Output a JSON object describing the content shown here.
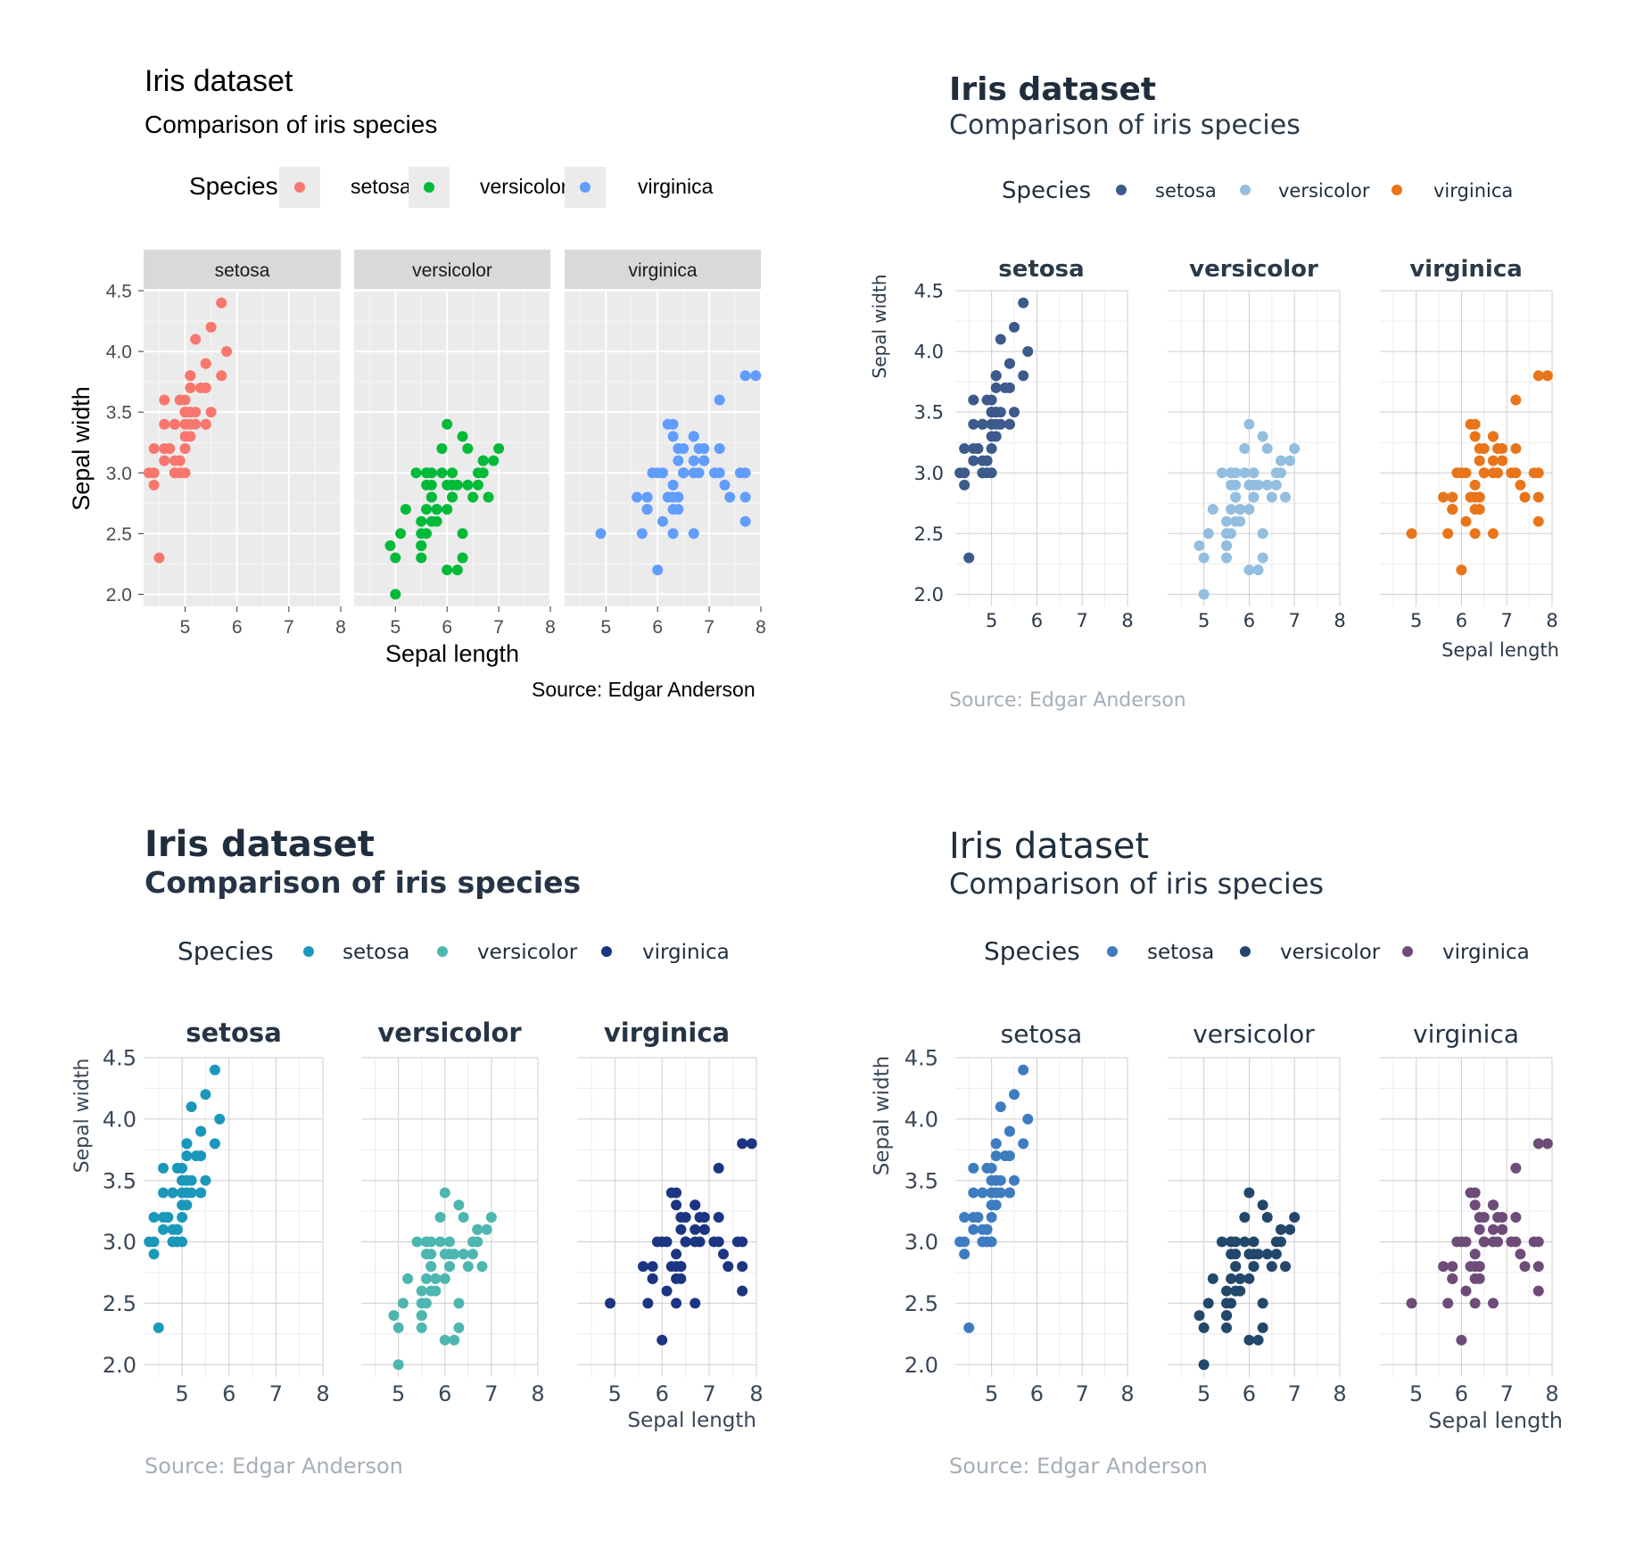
{
  "shared": {
    "x_ticks": [
      5,
      6,
      7,
      8
    ],
    "y_ticks": [
      "2.0",
      "2.5",
      "3.0",
      "3.5",
      "4.0",
      "4.5"
    ]
  },
  "chart_data": [
    {
      "type": "scatter",
      "title": "Iris dataset",
      "subtitle": "Comparison of iris species",
      "caption": "Source: Edgar Anderson",
      "xlabel": "Sepal length",
      "ylabel": "Sepal width",
      "xlim": [
        4.2,
        8.0
      ],
      "ylim": [
        1.9,
        4.5
      ],
      "grid": true,
      "legend": {
        "title": "Species",
        "position": "top"
      },
      "facets": [
        "setosa",
        "versicolor",
        "virginica"
      ],
      "colors": {
        "setosa": "#F8766D",
        "versicolor": "#00BA38",
        "virginica": "#619CFF"
      },
      "panel_background": "#EBEBEB"
    },
    {
      "type": "scatter",
      "title": "Iris dataset",
      "subtitle": "Comparison of iris species",
      "caption": "Source: Edgar Anderson",
      "xlabel": "Sepal length",
      "ylabel": "Sepal width",
      "xlim": [
        4.2,
        8.0
      ],
      "ylim": [
        1.9,
        4.5
      ],
      "grid": true,
      "legend": {
        "title": "Species",
        "position": "top"
      },
      "facets": [
        "setosa",
        "versicolor",
        "virginica"
      ],
      "colors": {
        "setosa": "#3C5A8A",
        "versicolor": "#93BEDF",
        "virginica": "#E8751A"
      }
    },
    {
      "type": "scatter",
      "title": "Iris dataset",
      "subtitle": "Comparison of iris species",
      "caption": "Source: Edgar Anderson",
      "xlabel": "Sepal length",
      "ylabel": "Sepal width",
      "xlim": [
        4.2,
        8.0
      ],
      "ylim": [
        1.9,
        4.5
      ],
      "grid": true,
      "legend": {
        "title": "Species",
        "position": "top"
      },
      "facets": [
        "setosa",
        "versicolor",
        "virginica"
      ],
      "colors": {
        "setosa": "#1A98BA",
        "versicolor": "#4DB6B0",
        "virginica": "#1C3582"
      }
    },
    {
      "type": "scatter",
      "title": "Iris dataset",
      "subtitle": "Comparison of iris species",
      "caption": "Source: Edgar Anderson",
      "xlabel": "Sepal length",
      "ylabel": "Sepal width",
      "xlim": [
        4.2,
        8.0
      ],
      "ylim": [
        1.9,
        4.5
      ],
      "grid": true,
      "legend": {
        "title": "Species",
        "position": "top"
      },
      "facets": [
        "setosa",
        "versicolor",
        "virginica"
      ],
      "colors": {
        "setosa": "#3E7CC0",
        "versicolor": "#23476A",
        "virginica": "#6E4B78"
      }
    }
  ],
  "iris": {
    "setosa": [
      [
        5.1,
        3.5
      ],
      [
        4.9,
        3.0
      ],
      [
        4.7,
        3.2
      ],
      [
        4.6,
        3.1
      ],
      [
        5.0,
        3.6
      ],
      [
        5.4,
        3.9
      ],
      [
        4.6,
        3.4
      ],
      [
        5.0,
        3.4
      ],
      [
        4.4,
        2.9
      ],
      [
        4.9,
        3.1
      ],
      [
        5.4,
        3.7
      ],
      [
        4.8,
        3.4
      ],
      [
        4.8,
        3.0
      ],
      [
        4.3,
        3.0
      ],
      [
        5.8,
        4.0
      ],
      [
        5.7,
        4.4
      ],
      [
        5.4,
        3.9
      ],
      [
        5.1,
        3.5
      ],
      [
        5.7,
        3.8
      ],
      [
        5.1,
        3.8
      ],
      [
        5.4,
        3.4
      ],
      [
        5.1,
        3.7
      ],
      [
        4.6,
        3.6
      ],
      [
        5.1,
        3.3
      ],
      [
        4.8,
        3.4
      ],
      [
        5.0,
        3.0
      ],
      [
        5.0,
        3.4
      ],
      [
        5.2,
        3.5
      ],
      [
        5.2,
        3.4
      ],
      [
        4.7,
        3.2
      ],
      [
        4.8,
        3.1
      ],
      [
        5.4,
        3.4
      ],
      [
        5.2,
        4.1
      ],
      [
        5.5,
        4.2
      ],
      [
        4.9,
        3.1
      ],
      [
        5.0,
        3.2
      ],
      [
        5.5,
        3.5
      ],
      [
        4.9,
        3.6
      ],
      [
        4.4,
        3.0
      ],
      [
        5.1,
        3.4
      ],
      [
        5.0,
        3.5
      ],
      [
        4.5,
        2.3
      ],
      [
        4.4,
        3.2
      ],
      [
        5.0,
        3.5
      ],
      [
        5.1,
        3.8
      ],
      [
        4.8,
        3.0
      ],
      [
        5.1,
        3.8
      ],
      [
        4.6,
        3.2
      ],
      [
        5.3,
        3.7
      ],
      [
        5.0,
        3.3
      ]
    ],
    "versicolor": [
      [
        7.0,
        3.2
      ],
      [
        6.4,
        3.2
      ],
      [
        6.9,
        3.1
      ],
      [
        5.5,
        2.3
      ],
      [
        6.5,
        2.8
      ],
      [
        5.7,
        2.8
      ],
      [
        6.3,
        3.3
      ],
      [
        4.9,
        2.4
      ],
      [
        6.6,
        2.9
      ],
      [
        5.2,
        2.7
      ],
      [
        5.0,
        2.0
      ],
      [
        5.9,
        3.0
      ],
      [
        6.0,
        2.2
      ],
      [
        6.1,
        2.9
      ],
      [
        5.6,
        2.9
      ],
      [
        6.7,
        3.1
      ],
      [
        5.6,
        3.0
      ],
      [
        5.8,
        2.7
      ],
      [
        6.2,
        2.2
      ],
      [
        5.6,
        2.5
      ],
      [
        5.9,
        3.2
      ],
      [
        6.1,
        2.8
      ],
      [
        6.3,
        2.5
      ],
      [
        6.1,
        2.8
      ],
      [
        6.4,
        2.9
      ],
      [
        6.6,
        3.0
      ],
      [
        6.8,
        2.8
      ],
      [
        6.7,
        3.0
      ],
      [
        6.0,
        2.9
      ],
      [
        5.7,
        2.6
      ],
      [
        5.5,
        2.4
      ],
      [
        5.5,
        2.4
      ],
      [
        5.8,
        2.7
      ],
      [
        6.0,
        2.7
      ],
      [
        5.4,
        3.0
      ],
      [
        6.0,
        3.4
      ],
      [
        6.7,
        3.1
      ],
      [
        6.3,
        2.3
      ],
      [
        5.6,
        3.0
      ],
      [
        5.5,
        2.5
      ],
      [
        5.5,
        2.6
      ],
      [
        6.1,
        3.0
      ],
      [
        5.8,
        2.6
      ],
      [
        5.0,
        2.3
      ],
      [
        5.6,
        2.7
      ],
      [
        5.7,
        3.0
      ],
      [
        5.7,
        2.9
      ],
      [
        6.2,
        2.9
      ],
      [
        5.1,
        2.5
      ],
      [
        5.7,
        2.8
      ]
    ],
    "virginica": [
      [
        6.3,
        3.3
      ],
      [
        5.8,
        2.7
      ],
      [
        7.1,
        3.0
      ],
      [
        6.3,
        2.9
      ],
      [
        6.5,
        3.0
      ],
      [
        7.6,
        3.0
      ],
      [
        4.9,
        2.5
      ],
      [
        7.3,
        2.9
      ],
      [
        6.7,
        2.5
      ],
      [
        7.2,
        3.6
      ],
      [
        6.5,
        3.2
      ],
      [
        6.4,
        2.7
      ],
      [
        6.8,
        3.0
      ],
      [
        5.7,
        2.5
      ],
      [
        5.8,
        2.8
      ],
      [
        6.4,
        3.2
      ],
      [
        6.5,
        3.0
      ],
      [
        7.7,
        3.8
      ],
      [
        7.7,
        2.6
      ],
      [
        6.0,
        2.2
      ],
      [
        6.9,
        3.2
      ],
      [
        5.6,
        2.8
      ],
      [
        7.7,
        2.8
      ],
      [
        6.3,
        2.7
      ],
      [
        6.7,
        3.3
      ],
      [
        7.2,
        3.2
      ],
      [
        6.2,
        2.8
      ],
      [
        6.1,
        3.0
      ],
      [
        6.4,
        2.8
      ],
      [
        7.2,
        3.0
      ],
      [
        7.4,
        2.8
      ],
      [
        7.9,
        3.8
      ],
      [
        6.4,
        2.8
      ],
      [
        6.3,
        2.8
      ],
      [
        6.1,
        2.6
      ],
      [
        7.7,
        3.0
      ],
      [
        6.3,
        3.4
      ],
      [
        6.4,
        3.1
      ],
      [
        6.0,
        3.0
      ],
      [
        6.9,
        3.1
      ],
      [
        6.7,
        3.1
      ],
      [
        6.9,
        3.1
      ],
      [
        5.8,
        2.7
      ],
      [
        6.8,
        3.2
      ],
      [
        6.7,
        3.3
      ],
      [
        6.7,
        3.0
      ],
      [
        6.3,
        2.5
      ],
      [
        6.5,
        3.0
      ],
      [
        6.2,
        3.4
      ],
      [
        5.9,
        3.0
      ]
    ]
  }
}
